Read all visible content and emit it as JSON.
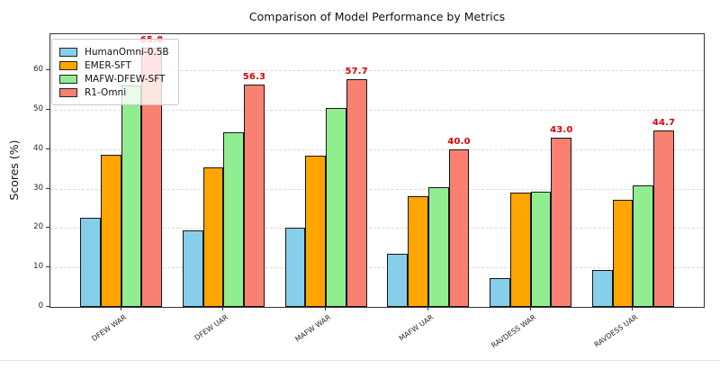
{
  "figure": {
    "title": "Comparison of Model Performance by Metrics",
    "ylabel": "Scores (%)"
  },
  "chart_data": {
    "type": "bar",
    "title": "Comparison of Model Performance by Metrics",
    "xlabel": "",
    "ylabel": "Scores (%)",
    "categories": [
      "DFEW WAR",
      "DFEW UAR",
      "MAFW WAR",
      "MAFW UAR",
      "RAVDESS WAR",
      "RAVDESS UAR"
    ],
    "series": [
      {
        "name": "HumanOmni-0.5B",
        "color": "#87CEEB",
        "values": [
          22.6,
          19.4,
          20.2,
          13.5,
          7.3,
          9.4
        ]
      },
      {
        "name": "EMER-SFT",
        "color": "#FFA500",
        "values": [
          38.7,
          35.3,
          38.4,
          28.0,
          29.0,
          27.2
        ]
      },
      {
        "name": "MAFW-DFEW-SFT",
        "color": "#90EE90",
        "values": [
          56.1,
          44.3,
          50.4,
          30.4,
          29.3,
          30.8
        ]
      },
      {
        "name": "R1-Omni",
        "color": "#FA8072",
        "values": [
          65.8,
          56.3,
          57.7,
          40.0,
          43.0,
          44.7
        ],
        "bar_labels": [
          "65.8",
          "56.3",
          "57.7",
          "40.0",
          "43.0",
          "44.7"
        ],
        "label_color": "#e00000"
      }
    ],
    "yticks": [
      0,
      10,
      20,
      30,
      40,
      50,
      60
    ],
    "ylim": [
      0,
      69.2
    ],
    "grid": "horizontal-dashed",
    "legend_position": "upper-left",
    "bar_group_width_units": 0.8,
    "x_margin_units": 0.69
  }
}
